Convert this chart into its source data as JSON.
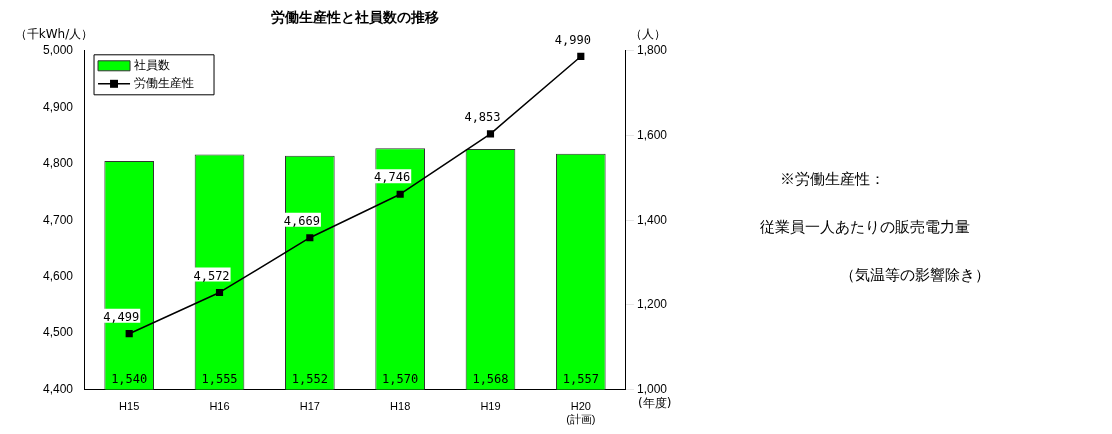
{
  "chart_data": {
    "type": "bar",
    "title": "労働生産性と社員数の推移",
    "categories": [
      "H15",
      "H16",
      "H17",
      "H18",
      "H19",
      "H20\n(計画)"
    ],
    "series": [
      {
        "name": "社員数",
        "axis": "y2",
        "color": "#00ff00",
        "values": [
          1540,
          1555,
          1552,
          1570,
          1568,
          1557
        ],
        "value_labels": [
          "1,540",
          "1,555",
          "1,552",
          "1,570",
          "1,568",
          "1,557"
        ]
      },
      {
        "name": "労働生産性",
        "type": "line",
        "axis": "y",
        "color": "#000000",
        "values": [
          4499,
          4572,
          4669,
          4746,
          4853,
          4990
        ],
        "value_labels": [
          "4,499",
          "4,572",
          "4,669",
          "4,746",
          "4,853",
          "4,990"
        ]
      }
    ],
    "ylabel": "（千kWh/人）",
    "y2label": "（人）",
    "xlabel": "(年度)",
    "ylim": [
      4400,
      5000
    ],
    "yticks": [
      {
        "value": 4400,
        "label": "4,400"
      },
      {
        "value": 4500,
        "label": "4,500"
      },
      {
        "value": 4600,
        "label": "4,600"
      },
      {
        "value": 4700,
        "label": "4,700"
      },
      {
        "value": 4800,
        "label": "4,800"
      },
      {
        "value": 4900,
        "label": "4,900"
      },
      {
        "value": 5000,
        "label": "5,000"
      }
    ],
    "y2lim": [
      1000,
      1800
    ],
    "y2ticks": [
      {
        "value": 1000,
        "label": "1,000"
      },
      {
        "value": 1200,
        "label": "1,200"
      },
      {
        "value": 1400,
        "label": "1,400"
      },
      {
        "value": 1600,
        "label": "1,600"
      },
      {
        "value": 1800,
        "label": "1,800"
      }
    ],
    "grid": false,
    "legend": "top left",
    "marker": "square",
    "line_style": "solid",
    "annotations": [
      "※労働生産性：",
      "従業員一人あたりの販売電力量",
      "（気温等の影響除き）"
    ]
  }
}
